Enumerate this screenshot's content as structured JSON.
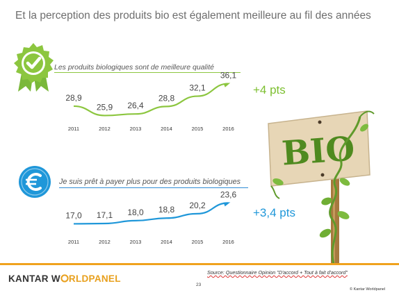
{
  "title": "Et la perception des produits bio est également meilleure au fil des années",
  "icons": {
    "top": "green-seal-check-icon",
    "bottom": "blue-euro-coin-icon"
  },
  "colors": {
    "green": "#8cc63f",
    "blue": "#1f97d9",
    "orange": "#f0a21d"
  },
  "chart_data": [
    {
      "type": "line",
      "subtitle": "Les produits biologiques sont de meilleure qualité",
      "x": [
        "2011",
        "2012",
        "2013",
        "2014",
        "2015",
        "2016"
      ],
      "series": [
        {
          "values": [
            28.9,
            25.9,
            26.4,
            28.8,
            32.1,
            36.1
          ]
        }
      ],
      "data_labels": [
        "28,9",
        "25,9",
        "26,4",
        "28,8",
        "32,1",
        "36,1"
      ],
      "ylim": [
        24,
        38
      ],
      "grid": false,
      "annotation": "+4 pts"
    },
    {
      "type": "line",
      "subtitle": "Je suis prêt à payer plus pour des produits biologiques",
      "x": [
        "2011",
        "2012",
        "2013",
        "2014",
        "2015",
        "2016"
      ],
      "series": [
        {
          "values": [
            17.0,
            17.1,
            18.0,
            18.8,
            20.2,
            23.6
          ]
        }
      ],
      "data_labels": [
        "17,0",
        "17,1",
        "18,0",
        "18,8",
        "20,2",
        "23,6"
      ],
      "ylim": [
        16,
        25
      ],
      "grid": false,
      "annotation": "+3,4 pts"
    }
  ],
  "sign": {
    "text": "BIO"
  },
  "footer": {
    "logo_part1": "KANTAR W",
    "logo_part2": "RLDPANEL",
    "page": "23",
    "source": "Source:  Questionnaire  Opinion  \"D'accord  + Tout à fait d'accord\"",
    "copyright": "© Kantar Worldpanel"
  }
}
